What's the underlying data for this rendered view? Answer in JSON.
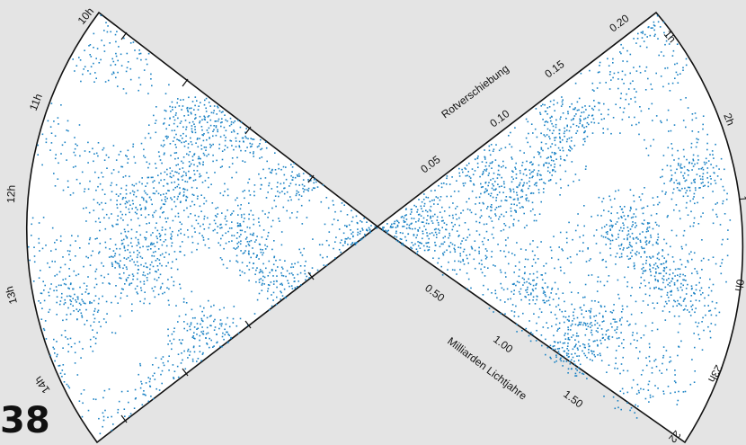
{
  "page": {
    "number": "38"
  },
  "diagram": {
    "background_color": "#e4e4e4",
    "point_color": "#1a82c4",
    "wedge_fill": "#ffffff",
    "redshift": {
      "title": "Rotverschiebung",
      "ticks": [
        {
          "value": 0.05,
          "label": "0.05"
        },
        {
          "value": 0.1,
          "label": "0.10"
        },
        {
          "value": 0.15,
          "label": "0.15"
        },
        {
          "value": 0.2,
          "label": "0.20"
        }
      ]
    },
    "distance": {
      "title": "Milliarden Lichtjahre",
      "ticks": [
        {
          "value": 0.5,
          "label": "0.50"
        },
        {
          "value": 1.0,
          "label": "1.00"
        },
        {
          "value": 1.5,
          "label": "1.50"
        }
      ]
    },
    "left_wedge": {
      "hours": [
        {
          "hour": 10,
          "label": "10h"
        },
        {
          "hour": 11,
          "label": "11h"
        },
        {
          "hour": 12,
          "label": "12h"
        },
        {
          "hour": 13,
          "label": "13h"
        },
        {
          "hour": 14,
          "label": "14h"
        }
      ]
    },
    "right_wedge": {
      "hours": [
        {
          "hour": 1,
          "label": "1h"
        },
        {
          "hour": 2,
          "label": "2h"
        },
        {
          "hour": 1,
          "label": "1"
        },
        {
          "hour": 0,
          "label": "0h"
        },
        {
          "hour": 23,
          "label": "23h"
        },
        {
          "hour": 22,
          "label": "22"
        }
      ]
    }
  }
}
